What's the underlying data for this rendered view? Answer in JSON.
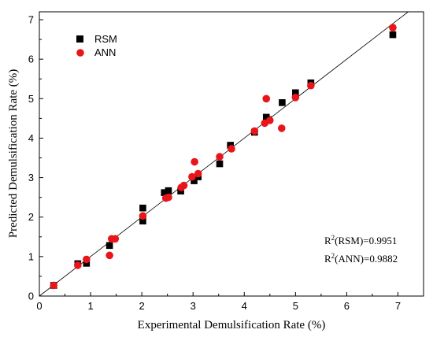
{
  "chart_data": {
    "type": "scatter",
    "xlabel": "Experimental Demulsification Rate (%)",
    "ylabel": "Predicted Demulsification Rate (%)",
    "xlim": [
      0,
      7.5
    ],
    "ylim": [
      0,
      7.2
    ],
    "xticks": [
      "0",
      "1",
      "2",
      "3",
      "4",
      "5",
      "6",
      "7"
    ],
    "yticks": [
      "0",
      "1",
      "2",
      "3",
      "4",
      "5",
      "6",
      "7"
    ],
    "grid": false,
    "legend_position": "top-left",
    "reference_line": {
      "type": "y=x",
      "color": "#000000"
    },
    "series": [
      {
        "name": "RSM",
        "marker": "square",
        "color": "#000000",
        "x": [
          0.28,
          0.75,
          0.92,
          1.37,
          2.02,
          2.02,
          2.44,
          2.52,
          2.76,
          3.02,
          3.1,
          3.52,
          3.73,
          4.2,
          4.43,
          4.47,
          4.74,
          5.0,
          5.3,
          6.9
        ],
        "y": [
          0.27,
          0.82,
          0.83,
          1.28,
          1.9,
          2.23,
          2.62,
          2.67,
          2.66,
          2.92,
          3.02,
          3.35,
          3.82,
          4.15,
          4.53,
          4.47,
          4.9,
          5.15,
          5.4,
          6.62
        ]
      },
      {
        "name": "ANN",
        "marker": "circle",
        "color": "#e8151b",
        "x": [
          0.28,
          0.75,
          0.92,
          1.37,
          1.41,
          1.48,
          2.02,
          2.47,
          2.52,
          2.77,
          2.82,
          2.98,
          3.03,
          3.1,
          3.52,
          3.75,
          4.2,
          4.4,
          4.43,
          4.5,
          4.73,
          5.0,
          5.3,
          6.9
        ],
        "y": [
          0.27,
          0.78,
          0.93,
          1.03,
          1.45,
          1.45,
          2.03,
          2.48,
          2.5,
          2.75,
          2.8,
          3.02,
          3.4,
          3.1,
          3.53,
          3.73,
          4.18,
          4.38,
          5.0,
          4.45,
          4.25,
          5.03,
          5.33,
          6.8
        ]
      }
    ],
    "annotations": [
      {
        "prefix": "R",
        "sup": "2",
        "text": "(RSM)=0.9951"
      },
      {
        "prefix": "R",
        "sup": "2",
        "text": "(ANN)=0.9882"
      }
    ]
  }
}
